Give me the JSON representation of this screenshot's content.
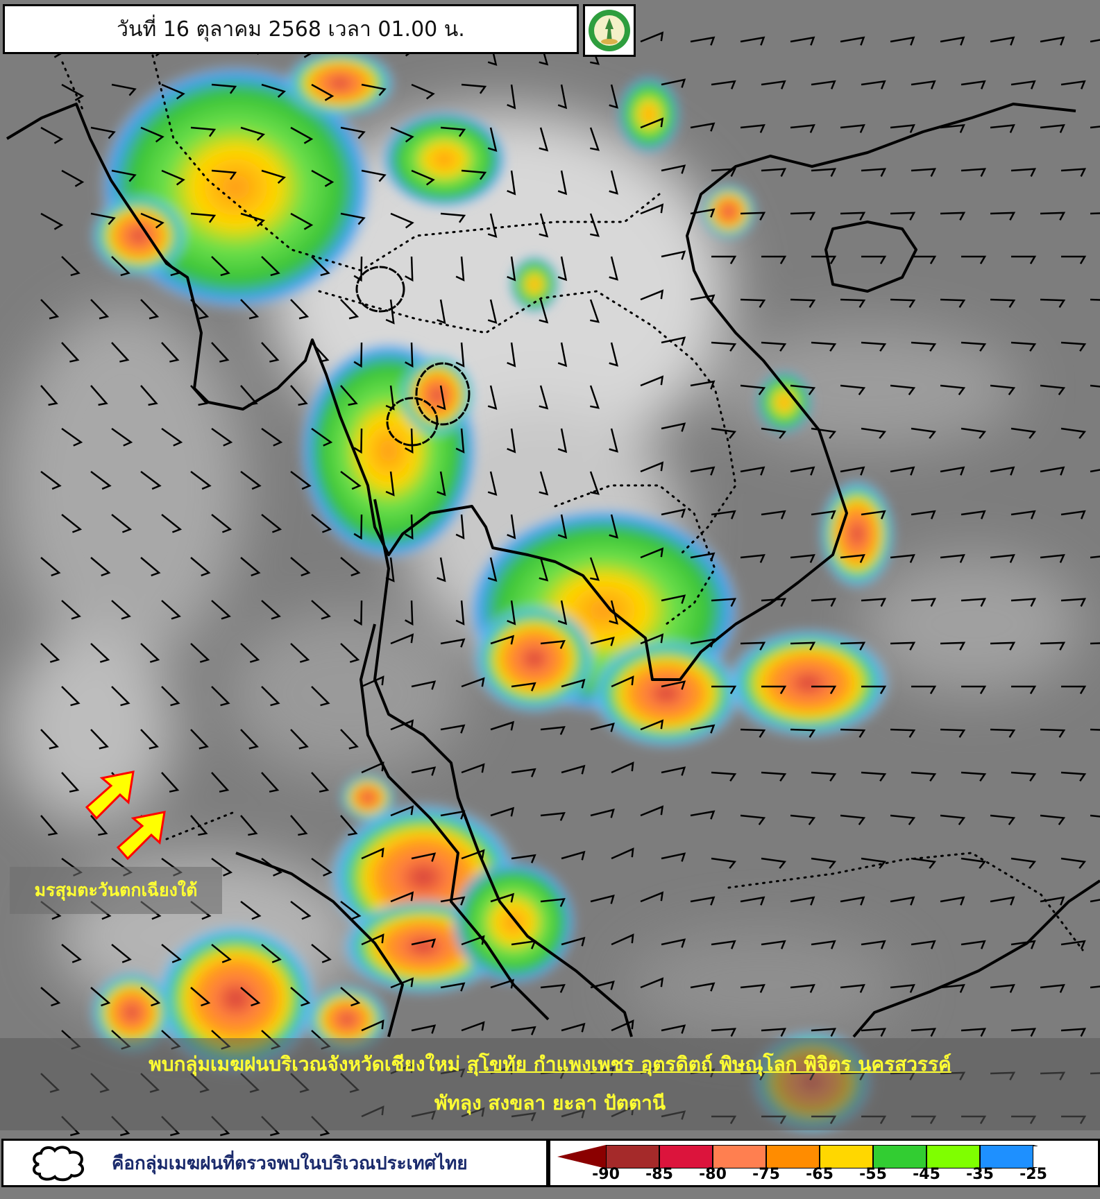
{
  "header": {
    "title": "วันที่ 16 ตุลาคม 2568 เวลา 01.00 น.",
    "logo": "กรมอุตุนิยมวิทยา METEOROLOGICAL DEPARTMENT"
  },
  "annotations": {
    "monsoon_label": "มรสุมตะวันตกเฉียงใต้",
    "wind_arrow_color": "#ffff00",
    "wind_arrow_outline": "#ff0000"
  },
  "summary": {
    "line1_prefix": "พบกลุ่มเมฆฝนบริเวณจังหวัดเชียงใหม่ ",
    "line1_underlined": "สุโขทัย กำแพงเพชร อุตรดิตถ์ พิษณุโลก พิจิตร นครสวรรค์",
    "line2": "พัทลุง สงขลา ยะลา ปัตตานี",
    "text_color": "#ffff33"
  },
  "legend": {
    "cloud_symbol": "cloud-outline-icon",
    "cloud_description": "คือกลุ่มเมฆฝนที่ตรวจพบในบริเวณประเทศไทย",
    "scale_colors": [
      "#8b0000",
      "#a52a2a",
      "#dc143c",
      "#ff7f50",
      "#ff8c00",
      "#ffd700",
      "#32cd32",
      "#7fff00",
      "#1e90ff",
      "#ffffff"
    ],
    "ticks": [
      "-90",
      "-85",
      "-80",
      "-75",
      "-65",
      "-55",
      "-45",
      "-35",
      "-25"
    ]
  }
}
